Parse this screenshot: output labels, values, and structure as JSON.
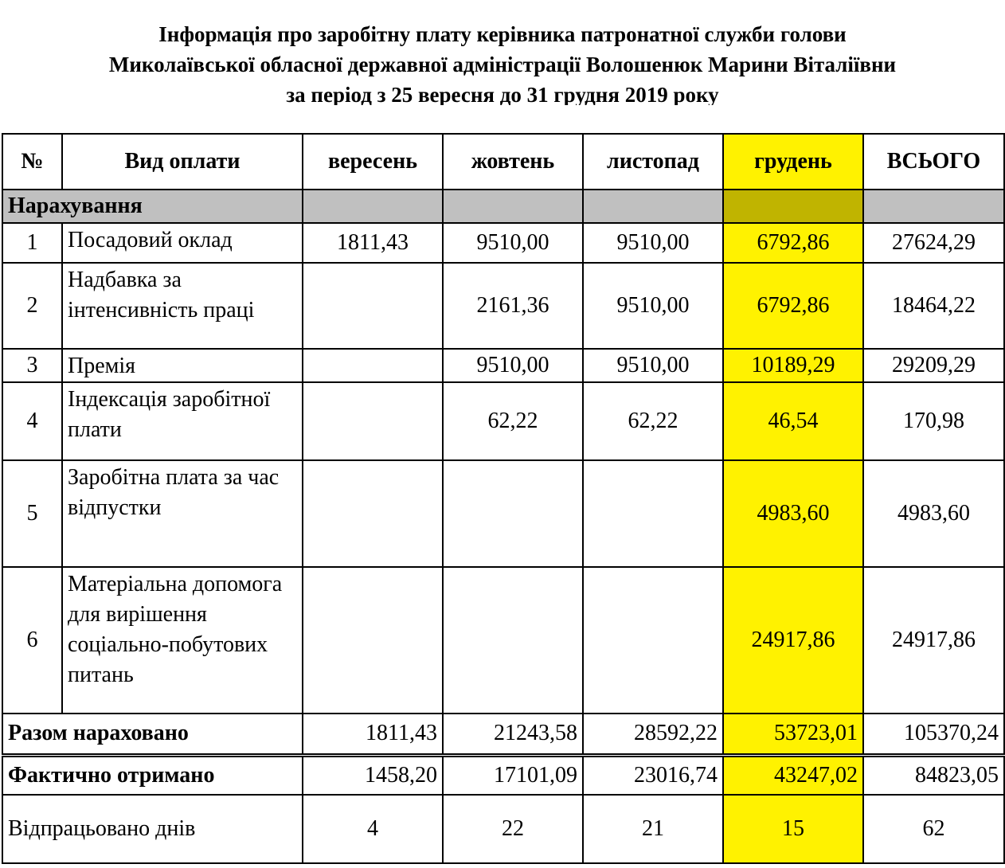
{
  "title": {
    "line1": "Інформація про заробітну плату керівника  патронатної служби голови",
    "line2": "Миколаївської обласної державної адміністрації  Волошенюк Марини Віталіївни",
    "line3": "за період з 25 вересня до 31 грудня 2019 року"
  },
  "colors": {
    "section_gray": "#c0c0c0",
    "highlight_yellow": "#fff200",
    "highlight_olive": "#c0b400"
  },
  "table": {
    "headers": [
      "№",
      "Вид оплати",
      "вересень",
      "жовтень",
      "листопад",
      "грудень",
      "ВСЬОГО"
    ],
    "highlighted_column": "грудень",
    "section": "Нарахування",
    "rows": [
      {
        "no": "1",
        "name": "Посадовий оклад",
        "values": [
          "1811,43",
          "9510,00",
          "9510,00",
          "6792,86",
          "27624,29"
        ]
      },
      {
        "no": "2",
        "name": "Надбавка за інтенсивність праці",
        "values": [
          "",
          "2161,36",
          "9510,00",
          "6792,86",
          "18464,22"
        ]
      },
      {
        "no": "3",
        "name": "Премія",
        "values": [
          "",
          "9510,00",
          "9510,00",
          "10189,29",
          "29209,29"
        ]
      },
      {
        "no": "4",
        "name": "Індексація заробітної плати",
        "values": [
          "",
          "62,22",
          "62,22",
          "46,54",
          "170,98"
        ]
      },
      {
        "no": "5",
        "name": "Заробітна плата за час відпустки",
        "values": [
          "",
          "",
          "",
          "4983,60",
          "4983,60"
        ]
      },
      {
        "no": "6",
        "name": "Матеріальна допомога для вирішення соціально-побутових питань",
        "values": [
          "",
          "",
          "",
          "24917,86",
          "24917,86"
        ]
      }
    ],
    "totals": [
      {
        "label": "Разом нараховано",
        "values": [
          "1811,43",
          "21243,58",
          "28592,22",
          "53723,01",
          "105370,24"
        ]
      },
      {
        "label": "Фактично отримано",
        "values": [
          "1458,20",
          "17101,09",
          "23016,74",
          "43247,02",
          "84823,05"
        ]
      }
    ],
    "days": {
      "label": "Відпрацьовано днів",
      "values": [
        "4",
        "22",
        "21",
        "15",
        "62"
      ]
    }
  }
}
